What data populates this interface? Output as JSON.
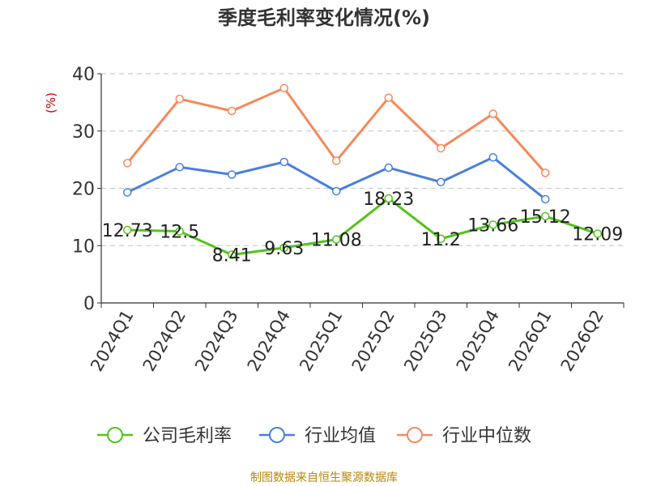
{
  "chart_data": {
    "type": "line",
    "title": "季度毛利率变化情况(%)",
    "ylabel": "(%)",
    "xlabel": "",
    "ylim": [
      0,
      40
    ],
    "yticks": [
      0,
      10,
      20,
      30,
      40
    ],
    "grid": true,
    "legend_position": "bottom",
    "categories": [
      "2024Q1",
      "2024Q2",
      "2024Q3",
      "2024Q4",
      "2025Q1",
      "2025Q2",
      "2025Q3",
      "2025Q4",
      "2026Q1",
      "2026Q2"
    ],
    "series": [
      {
        "name": "公司毛利率",
        "color": "#52c41a",
        "show_labels": true,
        "values": [
          12.73,
          12.5,
          8.41,
          9.63,
          11.08,
          18.23,
          11.2,
          13.66,
          15.12,
          12.09
        ]
      },
      {
        "name": "行业均值",
        "color": "#4a7fdc",
        "show_labels": false,
        "values": [
          19.3,
          23.7,
          22.4,
          24.6,
          19.5,
          23.6,
          21.1,
          25.4,
          18.1,
          null
        ]
      },
      {
        "name": "行业中位数",
        "color": "#f5895c",
        "show_labels": false,
        "values": [
          24.4,
          35.6,
          33.5,
          37.5,
          24.8,
          35.8,
          27.0,
          33.0,
          22.7,
          null
        ]
      }
    ]
  },
  "footer": "制图数据来自恒生聚源数据库"
}
